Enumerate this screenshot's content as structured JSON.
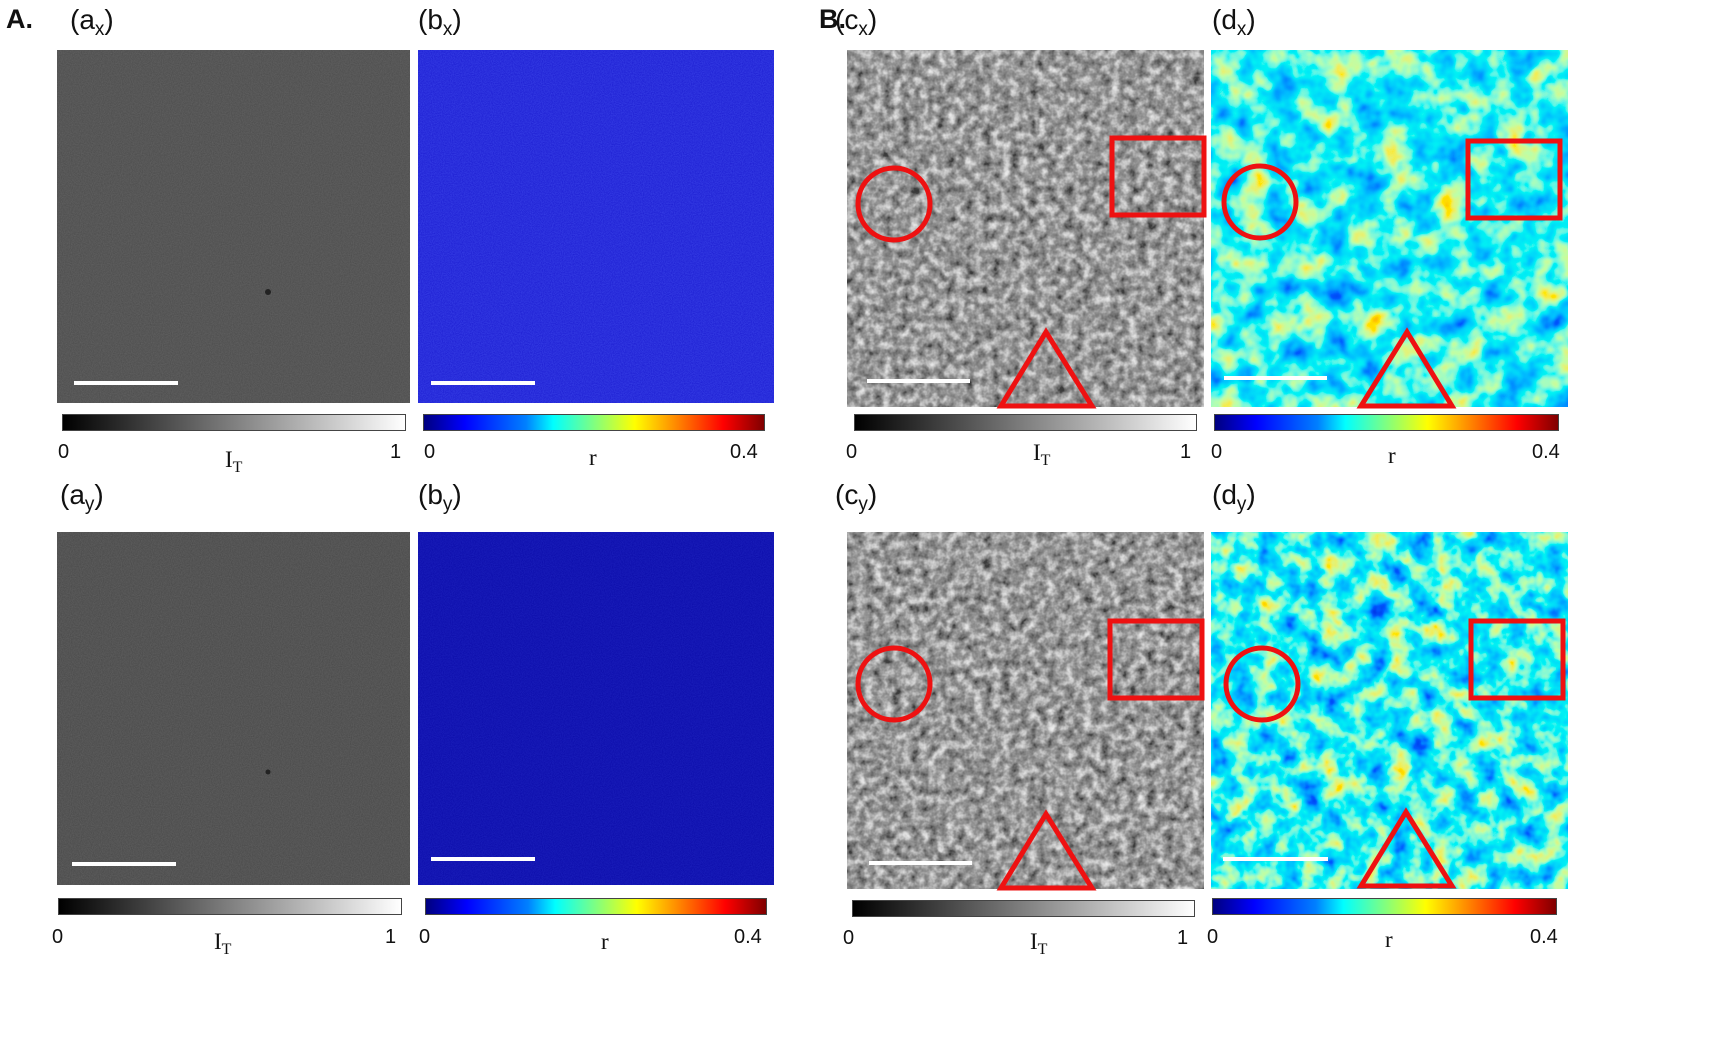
{
  "sections": {
    "a": "A.",
    "b": "B."
  },
  "panels": {
    "ax": {
      "main": "(a",
      "sub": "x",
      "close": ")"
    },
    "bx": {
      "main": "(b",
      "sub": "x",
      "close": ")"
    },
    "cx": {
      "main": "(c",
      "sub": "x",
      "close": ")"
    },
    "dx": {
      "main": "(d",
      "sub": "x",
      "close": ")"
    },
    "ay": {
      "main": "(a",
      "sub": "y",
      "close": ")"
    },
    "by": {
      "main": "(b",
      "sub": "y",
      "close": ")"
    },
    "cy": {
      "main": "(c",
      "sub": "y",
      "close": ")"
    },
    "dy": {
      "main": "(d",
      "sub": "y",
      "close": ")"
    }
  },
  "colorbars": {
    "intensity": {
      "min": "0",
      "max": "1",
      "label_main": "I",
      "label_sub": "T",
      "colormap": "gray"
    },
    "ratio": {
      "min": "0",
      "max": "0.4",
      "label": "r",
      "colormap": "jet"
    }
  },
  "colors": {
    "annotation": "#ee1111",
    "scalebar": "#ffffff"
  }
}
